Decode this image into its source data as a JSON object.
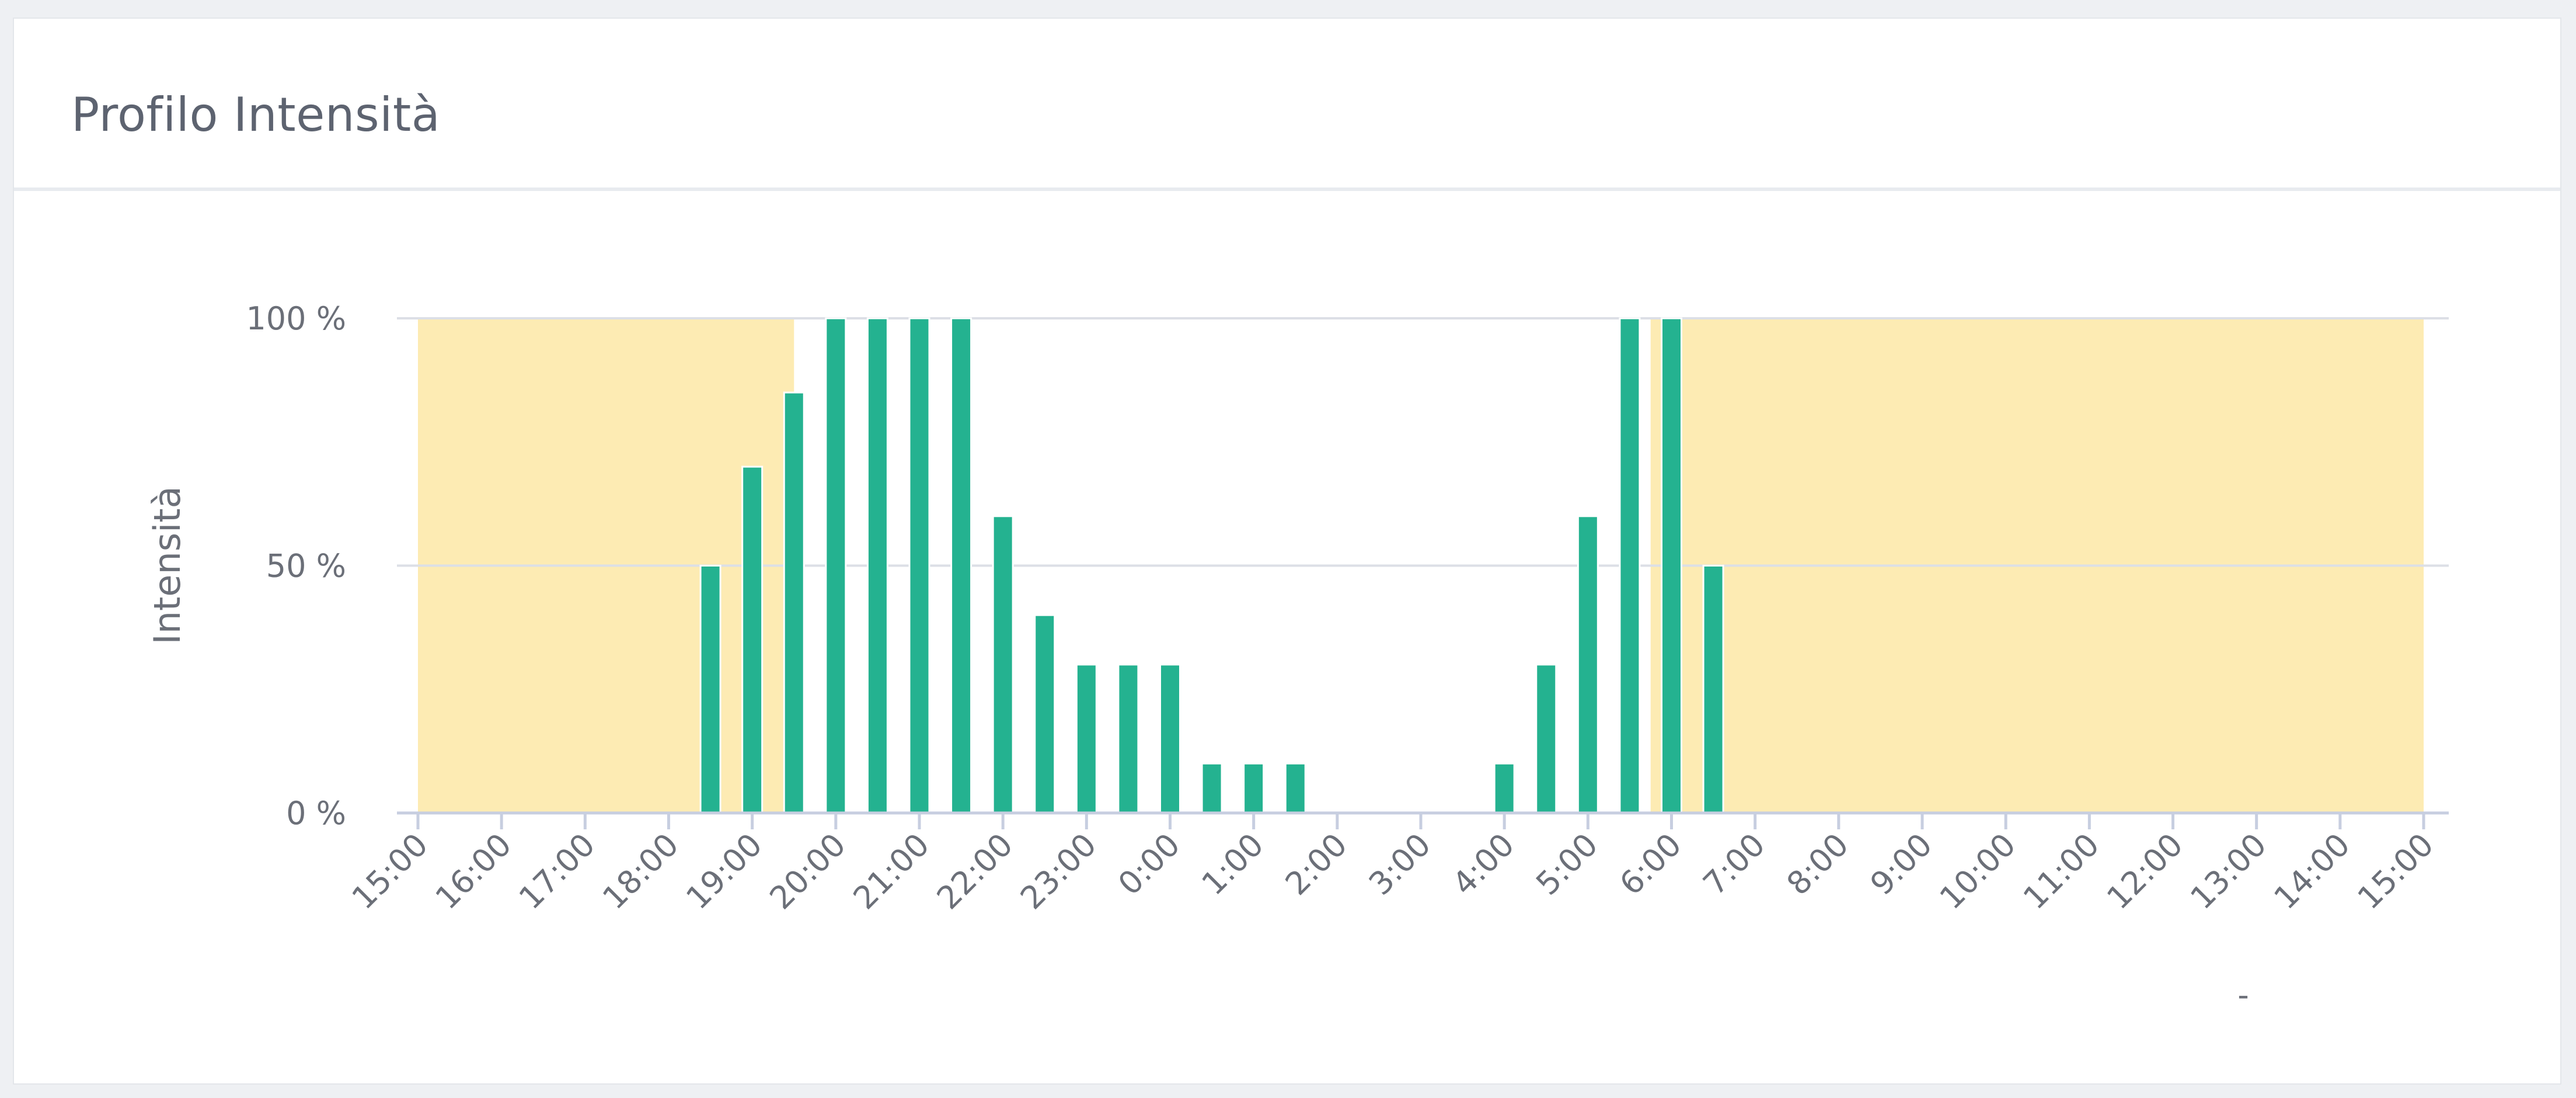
{
  "card": {
    "title": "Profilo Intensità"
  },
  "chart_data": {
    "type": "bar",
    "ylabel": "Intensità",
    "xlabel": "",
    "ylim": [
      0,
      100
    ],
    "y_ticks": [
      {
        "value": 0,
        "label": "0 %"
      },
      {
        "value": 50,
        "label": "50 %"
      },
      {
        "value": 100,
        "label": "100 %"
      }
    ],
    "x_range_hours": [
      0,
      24
    ],
    "x_tick_labels": [
      "15:00",
      "16:00",
      "17:00",
      "18:00",
      "19:00",
      "20:00",
      "21:00",
      "22:00",
      "23:00",
      "0:00",
      "1:00",
      "2:00",
      "3:00",
      "4:00",
      "5:00",
      "6:00",
      "7:00",
      "8:00",
      "9:00",
      "10:00",
      "11:00",
      "12:00",
      "13:00",
      "14:00",
      "15:00"
    ],
    "x_tick_rotation_deg": -45,
    "grid": true,
    "background_bands": [
      {
        "from": "15:00",
        "to": "19:30",
        "color": "#fdebb3"
      },
      {
        "from": "5:45",
        "to": "15:00",
        "color": "#fdebb3"
      }
    ],
    "bar_color": "#24b290",
    "bars": [
      {
        "time": "18:30",
        "value": 50
      },
      {
        "time": "19:00",
        "value": 70
      },
      {
        "time": "19:30",
        "value": 85
      },
      {
        "time": "20:00",
        "value": 100
      },
      {
        "time": "20:30",
        "value": 100
      },
      {
        "time": "21:00",
        "value": 100
      },
      {
        "time": "21:30",
        "value": 100
      },
      {
        "time": "22:00",
        "value": 60
      },
      {
        "time": "22:30",
        "value": 40
      },
      {
        "time": "23:00",
        "value": 30
      },
      {
        "time": "23:30",
        "value": 30
      },
      {
        "time": "0:00",
        "value": 30
      },
      {
        "time": "0:30",
        "value": 10
      },
      {
        "time": "1:00",
        "value": 10
      },
      {
        "time": "1:30",
        "value": 10
      },
      {
        "time": "4:00",
        "value": 10
      },
      {
        "time": "4:30",
        "value": 30
      },
      {
        "time": "5:00",
        "value": 60
      },
      {
        "time": "5:30",
        "value": 100
      },
      {
        "time": "6:00",
        "value": 100
      },
      {
        "time": "6:30",
        "value": 50
      }
    ],
    "footnote": "-"
  }
}
